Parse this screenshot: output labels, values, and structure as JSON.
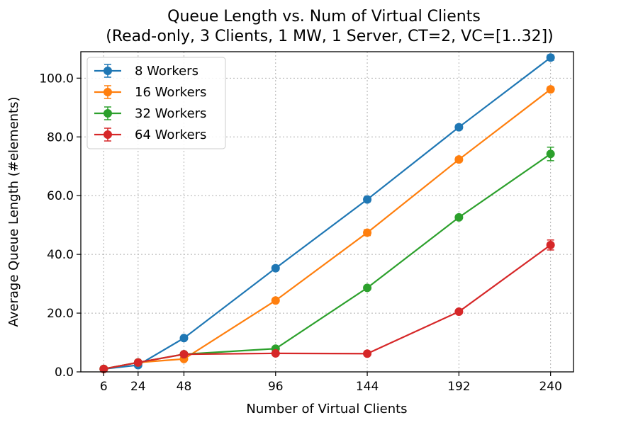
{
  "chart_data": {
    "type": "line",
    "title": "Queue Length vs. Num of Virtual Clients",
    "subtitle": "(Read-only, 3 Clients, 1 MW, 1 Server, CT=2, VC=[1..32])",
    "xlabel": "Number of Virtual Clients",
    "ylabel": "Average Queue Length (#elements)",
    "x": [
      6,
      24,
      48,
      96,
      144,
      192,
      240
    ],
    "x_ticks": [
      6,
      24,
      48,
      96,
      144,
      192,
      240
    ],
    "y_ticks": [
      0,
      20,
      40,
      60,
      80,
      100
    ],
    "y_tick_labels": [
      "0.0",
      "20.0",
      "40.0",
      "60.0",
      "80.0",
      "100.0"
    ],
    "xlim": [
      -6,
      252
    ],
    "ylim": [
      0,
      109
    ],
    "grid": true,
    "legend_position": "top-left",
    "series": [
      {
        "name": "8 Workers",
        "color": "#1f77b4",
        "values": [
          1.0,
          2.3,
          11.5,
          35.3,
          58.7,
          83.3,
          107.0
        ],
        "errors": [
          0.3,
          0.3,
          0.6,
          0.8,
          0.8,
          0.8,
          0.9
        ]
      },
      {
        "name": "16 Workers",
        "color": "#ff7f0e",
        "values": [
          1.0,
          3.2,
          4.4,
          24.3,
          47.4,
          72.3,
          96.2
        ],
        "errors": [
          0.3,
          0.3,
          0.5,
          0.6,
          1.0,
          0.8,
          0.8
        ]
      },
      {
        "name": "32 Workers",
        "color": "#2ca02c",
        "values": [
          1.0,
          3.2,
          6.0,
          7.9,
          28.6,
          52.6,
          74.2
        ],
        "errors": [
          0.3,
          0.3,
          0.4,
          0.4,
          0.6,
          0.7,
          2.3
        ]
      },
      {
        "name": "64 Workers",
        "color": "#d62728",
        "values": [
          1.0,
          3.2,
          6.0,
          6.3,
          6.2,
          20.5,
          43.2
        ],
        "errors": [
          0.3,
          0.3,
          0.4,
          0.3,
          0.3,
          0.5,
          1.7
        ]
      }
    ]
  }
}
